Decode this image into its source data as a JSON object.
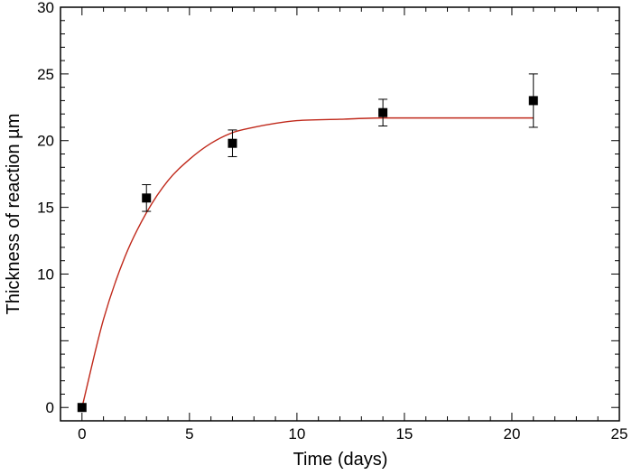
{
  "chart_data": {
    "type": "scatter",
    "xlabel": "Time (days)",
    "ylabel": "Thickness of reaction µm",
    "xlim": [
      -1,
      25
    ],
    "ylim": [
      -1,
      30
    ],
    "x_ticks": [
      0,
      5,
      10,
      15,
      20,
      25
    ],
    "y_ticks": [
      {
        "value": 0,
        "label": "0"
      },
      {
        "value": 5,
        "label": ""
      },
      {
        "value": 10,
        "label": "10"
      },
      {
        "value": 15,
        "label": "15"
      },
      {
        "value": 20,
        "label": "20"
      },
      {
        "value": 25,
        "label": "25"
      },
      {
        "value": 30,
        "label": "30"
      }
    ],
    "grid": false,
    "legend": "none",
    "series": [
      {
        "kind": "markers",
        "marker": "square",
        "color": "#000000",
        "points": [
          {
            "x": 0,
            "y": 0,
            "err": 0
          },
          {
            "x": 3,
            "y": 15.7,
            "err": 1.0
          },
          {
            "x": 7,
            "y": 19.8,
            "err": 1.0
          },
          {
            "x": 14,
            "y": 22.1,
            "err": 1.0
          },
          {
            "x": 21,
            "y": 23.0,
            "err": 2.0
          }
        ]
      },
      {
        "kind": "fit-curve",
        "color": "#c0291b",
        "x": [
          0,
          1,
          2,
          3,
          4,
          5,
          6,
          7,
          8,
          9,
          10,
          12,
          14,
          16,
          18,
          21
        ],
        "y": [
          0,
          6.6,
          11.3,
          14.6,
          17.0,
          18.6,
          19.8,
          20.6,
          21.0,
          21.3,
          21.5,
          21.6,
          21.7,
          21.7,
          21.7,
          21.7
        ]
      }
    ]
  }
}
